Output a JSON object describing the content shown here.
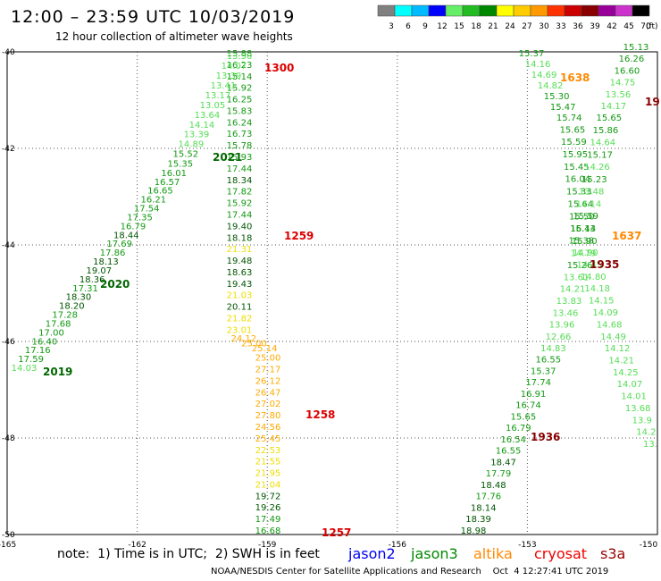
{
  "title": "12:00 – 23:59 UTC 10/03/2019",
  "subtitle": "12 hour collection of altimeter wave heights",
  "legend": {
    "bins": [
      "3",
      "6",
      "9",
      "12",
      "15",
      "18",
      "21",
      "24",
      "27",
      "30",
      "33",
      "36",
      "39",
      "42",
      "45",
      "70"
    ],
    "unit": "(ft)",
    "colors": [
      "#808080",
      "#00ffff",
      "#00bbff",
      "#0000ff",
      "#66ee66",
      "#22bb22",
      "#008800",
      "#ffff00",
      "#ffcc00",
      "#ff9900",
      "#ff3300",
      "#cc0000",
      "#880000",
      "#990099",
      "#cc33cc",
      "#000000"
    ]
  },
  "axes": {
    "lat_ticks": [
      "-40",
      "-42",
      "-44",
      "-46",
      "-48",
      "-50"
    ],
    "lon_ticks": [
      "-165",
      "-162",
      "-159",
      "-156",
      "-153",
      "-150"
    ]
  },
  "note": {
    "text": "note:  1) Time is in UTC;  2) SWH is in feet",
    "satellites": [
      {
        "name": "jason2",
        "color": "#0000ee"
      },
      {
        "name": "jason3",
        "color": "#008800"
      },
      {
        "name": "altika",
        "color": "#ff8800"
      },
      {
        "name": "cryosat",
        "color": "#ee0000"
      },
      {
        "name": "s3a",
        "color": "#990000"
      }
    ]
  },
  "footer": "NOAA/NESDIS Center for Satellite Applications and Research    Oct  4 12:27:41 UTC 2019",
  "tracks": [
    {
      "id": "track-a",
      "values": [
        "15.88",
        "16.23",
        "15.14",
        "15.92",
        "16.25",
        "15.83",
        "16.24",
        "16.73",
        "15.78",
        "15.93",
        "17.44",
        "18.34",
        "17.82",
        "15.92",
        "17.44",
        "19.40",
        "18.18",
        "21.31",
        "19.48",
        "18.63",
        "19.43",
        "21.03",
        "20.11",
        "21.82",
        "23.01",
        "24.12",
        "25.00",
        "25.14",
        "25.00",
        "27.17",
        "26.12",
        "26.47",
        "27.02",
        "27.80",
        "24.56",
        "25.45",
        "22.53",
        "21.55",
        "21.95",
        "21.04",
        "19.72",
        "19.26",
        "17.49",
        "16.68"
      ]
    },
    {
      "id": "track-b",
      "values": [
        "13.50",
        "14.07",
        "13.39",
        "13.41",
        "13.17",
        "13.05",
        "13.64",
        "14.14",
        "13.39",
        "14.89",
        "15.52",
        "15.35",
        "16.01",
        "16.57",
        "16.65",
        "16.21",
        "17.54",
        "17.35",
        "16.79",
        "18.44",
        "17.69",
        "17.86",
        "18.13",
        "19.07",
        "18.36",
        "17.31",
        "18.30",
        "18.20",
        "17.28",
        "17.68",
        "17.00",
        "16.40",
        "17.16",
        "17.59",
        "14.03"
      ]
    },
    {
      "id": "track-c",
      "values": [
        "15.37",
        "14.16",
        "14.69",
        "14.82",
        "15.30",
        "15.47",
        "15.74",
        "15.65",
        "15.59",
        "15.95",
        "15.45",
        "16.04",
        "15.33",
        "15.64",
        "15.50",
        "16.14",
        "15.90",
        "14.79",
        "15.26",
        "13.61",
        "14.21",
        "13.83",
        "13.46",
        "13.96",
        "12.66",
        "14.83",
        "16.55",
        "15.37",
        "17.74",
        "16.91",
        "16.74",
        "15.65",
        "16.79",
        "16.54",
        "16.55",
        "18.47",
        "17.79",
        "18.48",
        "17.76",
        "18.14",
        "18.39",
        "18.98"
      ]
    },
    {
      "id": "track-d",
      "values": [
        "15.13",
        "16.26",
        "16.60",
        "14.75",
        "13.56",
        "14.17",
        "15.65",
        "15.86",
        "14.64",
        "15.17",
        "14.26",
        "15.23",
        "13.48",
        "14.14",
        "15.59",
        "15.43",
        "15.38",
        "14.90",
        "14.45",
        "14.80",
        "14.18",
        "14.15",
        "14.09",
        "14.68",
        "14.49",
        "14.12",
        "14.21",
        "14.25",
        "14.07",
        "14.01",
        "13.68",
        "13.9",
        "14.2",
        "13."
      ]
    }
  ],
  "time_labels": [
    {
      "text": "1300",
      "color": "#dd0000"
    },
    {
      "text": "2021",
      "color": "#006600"
    },
    {
      "text": "1259",
      "color": "#dd0000"
    },
    {
      "text": "2020",
      "color": "#006600"
    },
    {
      "text": "2019",
      "color": "#006600"
    },
    {
      "text": "1258",
      "color": "#dd0000"
    },
    {
      "text": "1257",
      "color": "#dd0000"
    },
    {
      "text": "1638",
      "color": "#ff8800"
    },
    {
      "text": "1637",
      "color": "#ff8800"
    },
    {
      "text": "1935",
      "color": "#880000"
    },
    {
      "text": "1936",
      "color": "#880000"
    },
    {
      "text": "19",
      "color": "#880000"
    }
  ]
}
